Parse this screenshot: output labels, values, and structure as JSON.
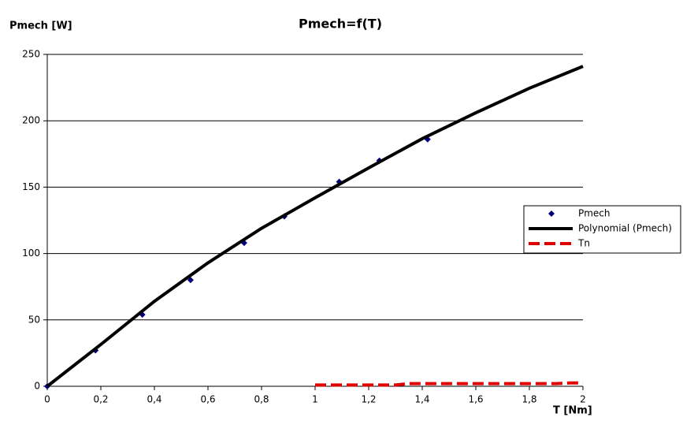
{
  "chart_data": {
    "type": "scatter",
    "title": "Pmech=f(T)",
    "y_label": "Pmech [W]",
    "x_label": "T [Nm]",
    "xlim": [
      0,
      2
    ],
    "ylim": [
      0,
      250
    ],
    "xticks": [
      0,
      {
        "value": 0.2,
        "label": "0,2"
      },
      {
        "value": 0.4,
        "label": "0,4"
      },
      {
        "value": 0.6,
        "label": "0,6"
      },
      {
        "value": 0.8,
        "label": "0,8"
      },
      1,
      {
        "value": 1.2,
        "label": "1,2"
      },
      {
        "value": 1.4,
        "label": "1,4"
      },
      {
        "value": 1.6,
        "label": "1,6"
      },
      {
        "value": 1.8,
        "label": "1,8"
      },
      2
    ],
    "yticks": [
      0,
      50,
      100,
      150,
      200,
      250
    ],
    "grid": true,
    "legend": "right",
    "series": [
      {
        "name": "Pmech",
        "type": "scatter",
        "color": "#000080",
        "x": [
          0,
          0.18,
          0.355,
          0.535,
          0.735,
          0.885,
          1.09,
          1.24,
          1.42
        ],
        "values": [
          0,
          27,
          54,
          80,
          108,
          128,
          154,
          170,
          186
        ]
      },
      {
        "name": "Polynomial (Pmech)",
        "type": "line",
        "color": "#000000",
        "dash": false,
        "x": [
          0,
          0.2,
          0.4,
          0.6,
          0.8,
          1,
          1.2,
          1.4,
          1.6,
          1.8,
          2
        ],
        "values": [
          0,
          31.5,
          64,
          93,
          119,
          142,
          164.5,
          186.5,
          206,
          224.5,
          241
        ]
      },
      {
        "name": "Tn",
        "type": "line",
        "color": "#e00000",
        "dash": true,
        "x": [
          1,
          1.3,
          1.35,
          1.9,
          1.95,
          2
        ],
        "values": [
          1,
          1,
          2,
          2,
          2.5,
          2.5
        ]
      }
    ]
  }
}
